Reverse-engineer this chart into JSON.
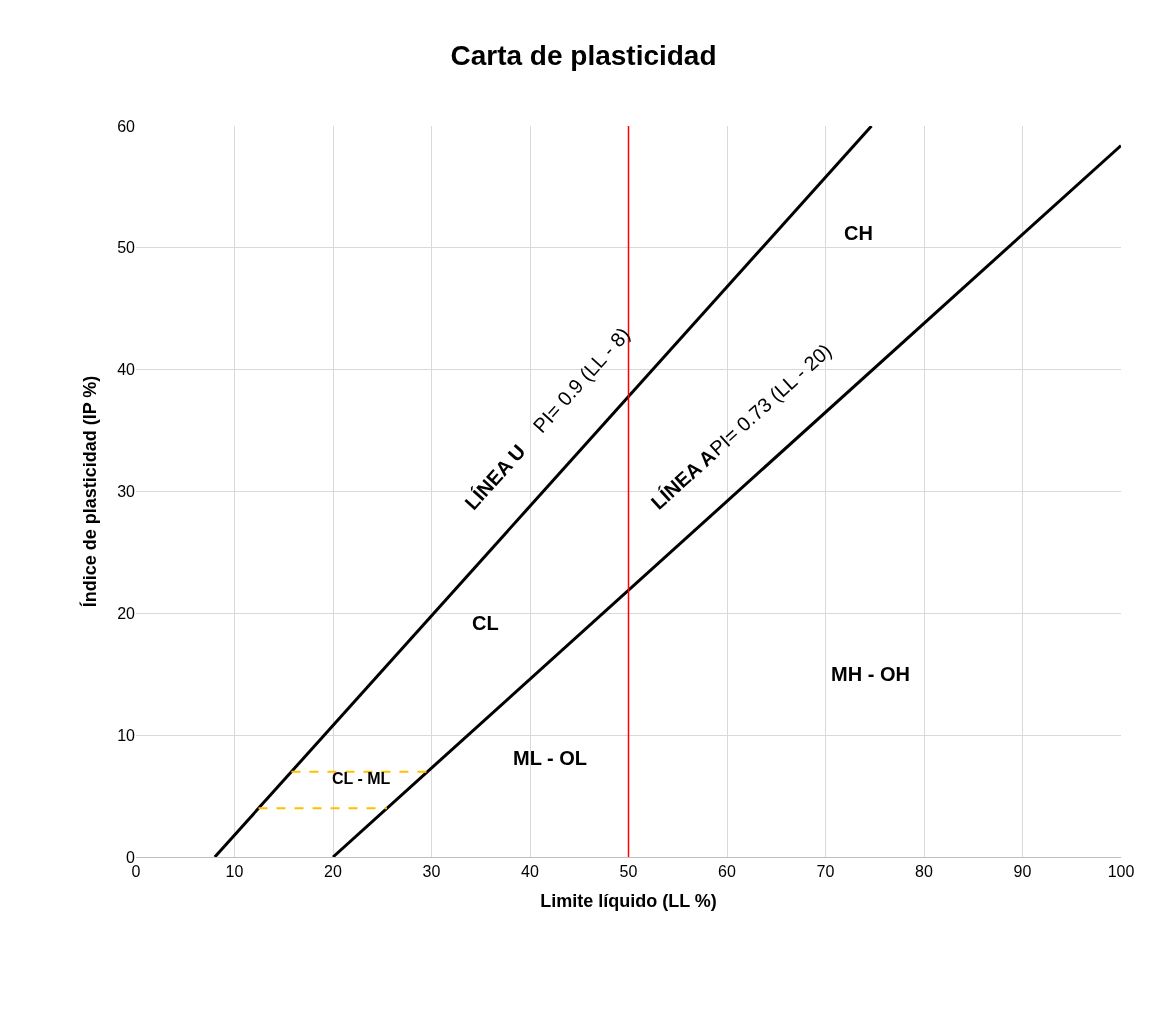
{
  "chart_data": {
    "type": "line",
    "title": "Carta de plasticidad",
    "xlabel": "Limite líquido (LL %)",
    "ylabel": "Índice de plasticidad (IP %)",
    "series": [
      {
        "color": "#000000",
        "x": [
          8,
          74.67
        ],
        "values": [
          0,
          60
        ]
      },
      {
        "color": "#000000",
        "x": [
          20,
          100
        ],
        "values": [
          0,
          58.4
        ]
      },
      {
        "color": "#ffc000",
        "line_style": "dashed",
        "x": [
          12.44,
          25.48
        ],
        "values": [
          4,
          4
        ]
      },
      {
        "color": "#ffc000",
        "line_style": "dashed",
        "x": [
          15.78,
          29.59
        ],
        "values": [
          7,
          7
        ]
      }
    ],
    "ref_lines": [
      {
        "axis": "x",
        "value": 50,
        "color": "#ff0000"
      }
    ],
    "annotations": [
      {
        "text": "LÍNEA U",
        "x": 39.9,
        "y": 28.7
      },
      {
        "text": "PI= 0.9 (LL - 8)",
        "x": 48.7,
        "y": 36.6
      },
      {
        "text": "LÍNEA A",
        "x": 58.7,
        "y": 28.2
      },
      {
        "text": "PI= 0.73 (LL - 20)",
        "x": 67.5,
        "y": 34.7
      },
      "CH",
      "CL",
      "MH - OH",
      "ML - OL",
      "CL - ML"
    ],
    "xlim": [
      0,
      100
    ],
    "xticks": [
      0,
      10,
      20,
      30,
      40,
      50,
      60,
      70,
      80,
      90,
      100
    ],
    "ylim": [
      0,
      60
    ],
    "yticks": [
      0,
      10,
      20,
      30,
      40,
      50,
      60
    ],
    "grid": true,
    "legend": false,
    "marker": "none"
  }
}
